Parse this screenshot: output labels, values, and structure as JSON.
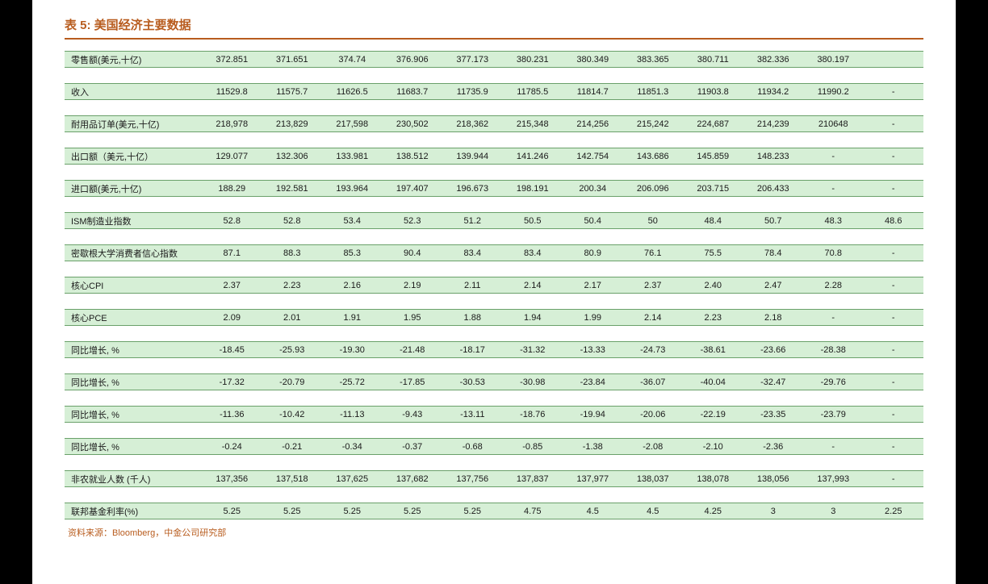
{
  "title": "表 5:   美国经济主要数据",
  "source": "资料来源：Bloomberg，中金公司研究部",
  "table": {
    "row_bg": "#d6efd6",
    "row_border": "#6aa06a",
    "accent": "#b85c1e",
    "label_col_width": 170,
    "rows": [
      {
        "label": "零售额(美元,十亿)",
        "values": [
          "372.851",
          "371.651",
          "374.74",
          "376.906",
          "377.173",
          "380.231",
          "380.349",
          "383.365",
          "380.711",
          "382.336",
          "380.197",
          ""
        ]
      },
      {
        "label": "收入",
        "values": [
          "11529.8",
          "11575.7",
          "11626.5",
          "11683.7",
          "11735.9",
          "11785.5",
          "11814.7",
          "11851.3",
          "11903.8",
          "11934.2",
          "11990.2",
          "-"
        ]
      },
      {
        "label": "耐用品订单(美元,十亿)",
        "values": [
          "218,978",
          "213,829",
          "217,598",
          "230,502",
          "218,362",
          "215,348",
          "214,256",
          "215,242",
          "224,687",
          "214,239",
          "210648",
          "-"
        ]
      },
      {
        "label": "出口额（美元,十亿）",
        "values": [
          "129.077",
          "132.306",
          "133.981",
          "138.512",
          "139.944",
          "141.246",
          "142.754",
          "143.686",
          "145.859",
          "148.233",
          "-",
          "-"
        ]
      },
      {
        "label": "进口额(美元,十亿)",
        "values": [
          "188.29",
          "192.581",
          "193.964",
          "197.407",
          "196.673",
          "198.191",
          "200.34",
          "206.096",
          "203.715",
          "206.433",
          "-",
          "-"
        ]
      },
      {
        "label": "ISM制造业指数",
        "values": [
          "52.8",
          "52.8",
          "53.4",
          "52.3",
          "51.2",
          "50.5",
          "50.4",
          "50",
          "48.4",
          "50.7",
          "48.3",
          "48.6"
        ]
      },
      {
        "label": "密歇根大学消费者信心指数",
        "values": [
          "87.1",
          "88.3",
          "85.3",
          "90.4",
          "83.4",
          "83.4",
          "80.9",
          "76.1",
          "75.5",
          "78.4",
          "70.8",
          "-"
        ]
      },
      {
        "label": "核心CPI",
        "values": [
          "2.37",
          "2.23",
          "2.16",
          "2.19",
          "2.11",
          "2.14",
          "2.17",
          "2.37",
          "2.40",
          "2.47",
          "2.28",
          "-"
        ]
      },
      {
        "label": "核心PCE",
        "values": [
          "2.09",
          "2.01",
          "1.91",
          "1.95",
          "1.88",
          "1.94",
          "1.99",
          "2.14",
          "2.23",
          "2.18",
          "-",
          "-"
        ]
      },
      {
        "label": "同比增长, %",
        "values": [
          "-18.45",
          "-25.93",
          "-19.30",
          "-21.48",
          "-18.17",
          "-31.32",
          "-13.33",
          "-24.73",
          "-38.61",
          "-23.66",
          "-28.38",
          "-"
        ]
      },
      {
        "label": "同比增长, %",
        "values": [
          "-17.32",
          "-20.79",
          "-25.72",
          "-17.85",
          "-30.53",
          "-30.98",
          "-23.84",
          "-36.07",
          "-40.04",
          "-32.47",
          "-29.76",
          "-"
        ]
      },
      {
        "label": "同比增长, %",
        "values": [
          "-11.36",
          "-10.42",
          "-11.13",
          "-9.43",
          "-13.11",
          "-18.76",
          "-19.94",
          "-20.06",
          "-22.19",
          "-23.35",
          "-23.79",
          "-"
        ]
      },
      {
        "label": "同比增长, %",
        "values": [
          "-0.24",
          "-0.21",
          "-0.34",
          "-0.37",
          "-0.68",
          "-0.85",
          "-1.38",
          "-2.08",
          "-2.10",
          "-2.36",
          "-",
          "-"
        ]
      },
      {
        "label": "非农就业人数 (千人)",
        "values": [
          "137,356",
          "137,518",
          "137,625",
          "137,682",
          "137,756",
          "137,837",
          "137,977",
          "138,037",
          "138,078",
          "138,056",
          "137,993",
          "-"
        ]
      },
      {
        "label": "联邦基金利率(%)",
        "values": [
          "5.25",
          "5.25",
          "5.25",
          "5.25",
          "5.25",
          "4.75",
          "4.5",
          "4.5",
          "4.25",
          "3",
          "3",
          "2.25"
        ]
      }
    ]
  }
}
